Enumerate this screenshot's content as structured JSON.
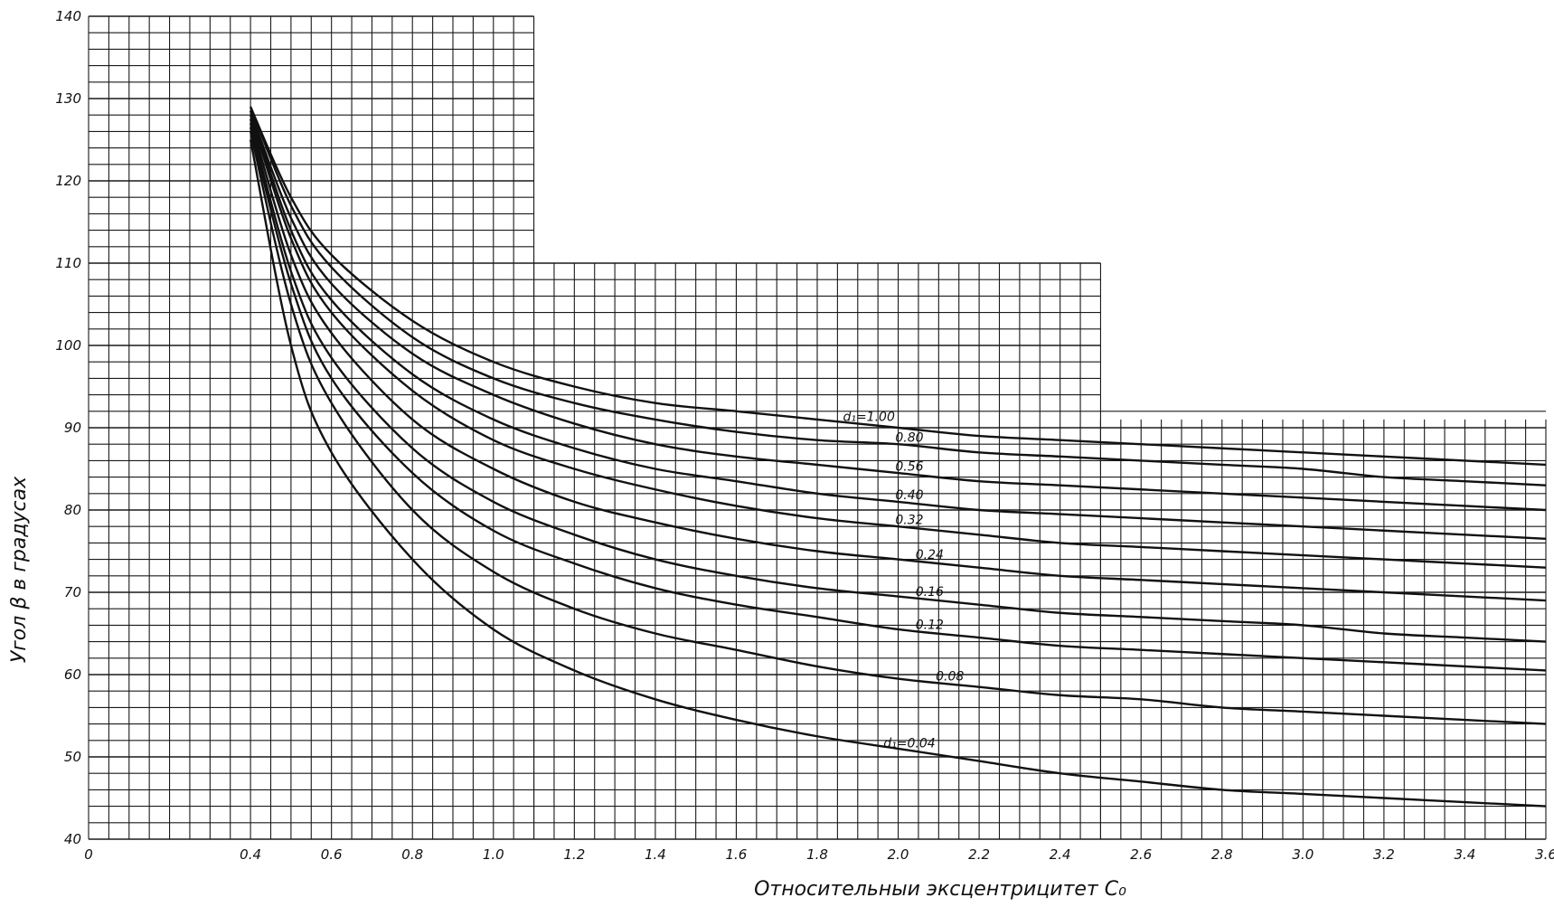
{
  "chart_data": {
    "type": "line",
    "title": "",
    "xlabel": "Относительныи эксцентрицитет C₀",
    "ylabel": "Угол β в градусах",
    "xlim": [
      0,
      3.6
    ],
    "ylim": [
      40,
      140
    ],
    "grid": true,
    "x_ticks": [
      "0",
      "0.4",
      "0.6",
      "0.8",
      "1.0",
      "1.2",
      "1.4",
      "1.6",
      "1.8",
      "2.0",
      "2.2",
      "2.4",
      "2.6",
      "2.8",
      "3.0",
      "3.2",
      "3.4",
      "3.6"
    ],
    "y_ticks": [
      "40",
      "50",
      "60",
      "70",
      "80",
      "90",
      "100",
      "110",
      "120",
      "130",
      "140"
    ],
    "x": [
      0.4,
      0.5,
      0.6,
      0.8,
      1.0,
      1.2,
      1.4,
      1.6,
      1.8,
      2.0,
      2.2,
      2.4,
      2.6,
      2.8,
      3.0,
      3.2,
      3.4,
      3.6
    ],
    "series": [
      {
        "name": "d₁=1.00",
        "values": [
          129,
          118,
          111,
          103,
          98,
          95,
          93,
          92,
          91,
          90,
          89,
          88.5,
          88,
          87.5,
          87,
          86.5,
          86,
          85.5
        ]
      },
      {
        "name": "0.80",
        "values": [
          129,
          117,
          109.5,
          101,
          96,
          93,
          91,
          89.5,
          88.5,
          88,
          87,
          86.5,
          86,
          85.5,
          85,
          84,
          83.5,
          83
        ]
      },
      {
        "name": "0.56",
        "values": [
          128.5,
          115.5,
          107.5,
          99,
          94,
          90.5,
          88,
          86.5,
          85.5,
          84.5,
          83.5,
          83,
          82.5,
          82,
          81.5,
          81,
          80.5,
          80
        ]
      },
      {
        "name": "0.40",
        "values": [
          128.5,
          114,
          105.5,
          96.5,
          91,
          87.5,
          85,
          83.5,
          82,
          81,
          80,
          79.5,
          79,
          78.5,
          78,
          77.5,
          77,
          76.5
        ]
      },
      {
        "name": "0.32",
        "values": [
          128,
          113,
          104,
          94.5,
          88.5,
          85,
          82.5,
          80.5,
          79,
          78,
          77,
          76,
          75.5,
          75,
          74.5,
          74,
          73.5,
          73
        ]
      },
      {
        "name": "0.24",
        "values": [
          127.5,
          111,
          101.5,
          91,
          85,
          81,
          78.5,
          76.5,
          75,
          74,
          73,
          72,
          71.5,
          71,
          70.5,
          70,
          69.5,
          69
        ]
      },
      {
        "name": "0.16",
        "values": [
          127,
          109,
          98.5,
          87.5,
          81,
          77,
          74,
          72,
          70.5,
          69.5,
          68.5,
          67.5,
          67,
          66.5,
          66,
          65,
          64.5,
          64
        ]
      },
      {
        "name": "0.12",
        "values": [
          126.5,
          107.5,
          96,
          84.5,
          77.5,
          73.5,
          70.5,
          68.5,
          67,
          65.5,
          64.5,
          63.5,
          63,
          62.5,
          62,
          61.5,
          61,
          60.5
        ]
      },
      {
        "name": "0.08",
        "values": [
          126,
          105,
          93,
          80,
          72.5,
          68,
          65,
          63,
          61,
          59.5,
          58.5,
          57.5,
          57,
          56,
          55.5,
          55,
          54.5,
          54
        ]
      },
      {
        "name": "d₁=0.04",
        "values": [
          125,
          100,
          87,
          74,
          65.5,
          60.5,
          57,
          54.5,
          52.5,
          51,
          49.5,
          48,
          47,
          46,
          45.5,
          45,
          44.5,
          44
        ]
      }
    ],
    "grid_extent_note_removed": true
  },
  "style": {
    "ink_color": "#111111",
    "grid_color": "#1a1a1a",
    "background": "#ffffff"
  }
}
